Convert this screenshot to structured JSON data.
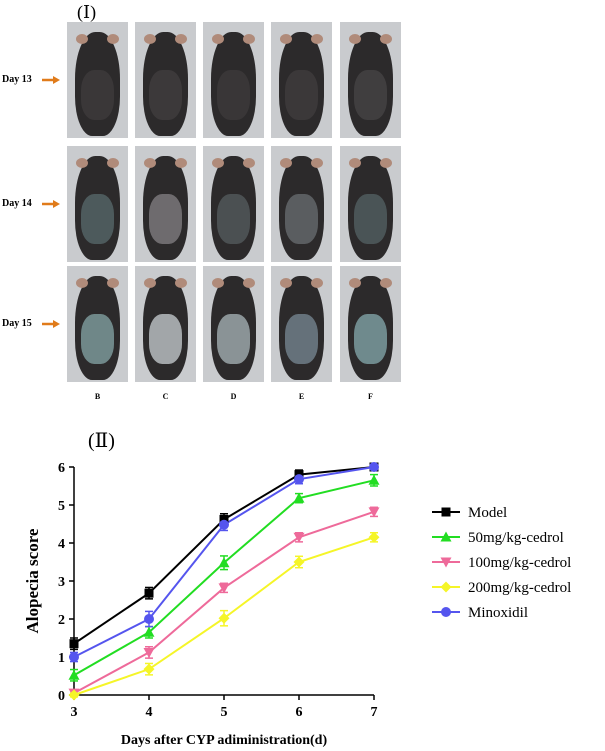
{
  "panel_one": {
    "label": "(Ⅰ)",
    "rows": [
      {
        "day": "Day 13",
        "patch_colors": [
          "#3a3738",
          "#3c393a",
          "#393637",
          "#3b3839",
          "#403e3f"
        ]
      },
      {
        "day": "Day 14",
        "patch_colors": [
          "#4d5a5c",
          "#6e6b6e",
          "#4b5052",
          "#5a5d60",
          "#4a5456"
        ]
      },
      {
        "day": "Day 15",
        "patch_colors": [
          "#6f8788",
          "#a2a6a9",
          "#8a9396",
          "#65717a",
          "#6f8a8d"
        ]
      }
    ],
    "groups": [
      "B",
      "C",
      "D",
      "E",
      "F"
    ],
    "arrow_color": "#e07b1a"
  },
  "chart_data": {
    "type": "line",
    "panel_label": "(Ⅱ)",
    "xlabel": "Days after CYP adiministration(d)",
    "ylabel": "Alopecia score",
    "xlim": [
      3,
      7
    ],
    "ylim": [
      0,
      6
    ],
    "x": [
      3,
      4,
      5,
      6,
      7
    ],
    "xticks": [
      "3",
      "4",
      "5",
      "6",
      "7"
    ],
    "yticks": [
      "0",
      "1",
      "2",
      "3",
      "4",
      "5",
      "6"
    ],
    "legend_position": "right",
    "series": [
      {
        "name": "Model",
        "marker": "square",
        "color": "#000000",
        "values": [
          1.35,
          2.68,
          4.62,
          5.8,
          6.0
        ],
        "errors": [
          0.15,
          0.15,
          0.15,
          0.12,
          0.05
        ]
      },
      {
        "name": "50mg/kg-cedrol",
        "marker": "triangle-up",
        "color": "#22dd22",
        "values": [
          0.52,
          1.65,
          3.48,
          5.18,
          5.65
        ],
        "errors": [
          0.15,
          0.15,
          0.18,
          0.12,
          0.15
        ]
      },
      {
        "name": "100mg/kg-cedrol",
        "marker": "triangle-down",
        "color": "#ee6a9a",
        "values": [
          0.05,
          1.12,
          2.82,
          4.15,
          4.82
        ],
        "errors": [
          0.08,
          0.15,
          0.12,
          0.12,
          0.12
        ]
      },
      {
        "name": "200mg/kg-cedrol",
        "marker": "diamond",
        "color": "#f5f528",
        "values": [
          0.0,
          0.68,
          2.02,
          3.5,
          4.15
        ],
        "errors": [
          0.05,
          0.15,
          0.2,
          0.15,
          0.12
        ]
      },
      {
        "name": "Minoxidil",
        "marker": "circle",
        "color": "#5555ee",
        "values": [
          1.0,
          2.0,
          4.48,
          5.68,
          6.0
        ],
        "errors": [
          0.12,
          0.2,
          0.15,
          0.12,
          0.05
        ]
      }
    ]
  }
}
